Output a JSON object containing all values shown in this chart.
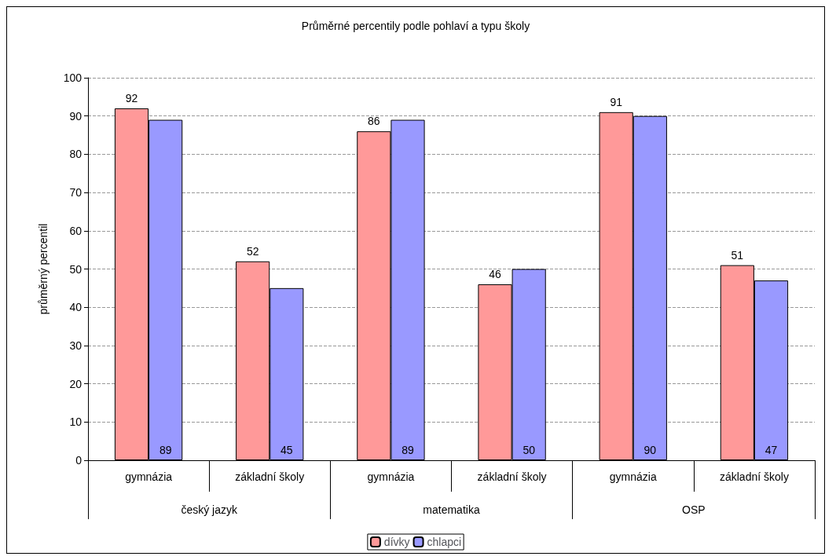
{
  "chart_data": {
    "type": "bar",
    "title": "Průměrné percentily podle pohlaví a typu školy",
    "ylabel": "průměrný percentil",
    "categories": [
      "gymnázia",
      "základní školy",
      "gymnázia",
      "základní školy",
      "gymnázia",
      "základní školy"
    ],
    "annotations": [
      "český jazyk",
      "matematika",
      "OSP"
    ],
    "series": [
      {
        "name": "dívky",
        "color": "#ff9999",
        "values": [
          92,
          52,
          86,
          46,
          91,
          51
        ]
      },
      {
        "name": "chlapci",
        "color": "#9999ff",
        "values": [
          89,
          45,
          89,
          50,
          90,
          47
        ]
      }
    ],
    "ylim": [
      0,
      100
    ],
    "yticks": [
      0,
      10,
      20,
      30,
      40,
      50,
      60,
      70,
      80,
      90,
      100
    ],
    "grid": "y",
    "legend": "bottom",
    "data_labels": true
  }
}
